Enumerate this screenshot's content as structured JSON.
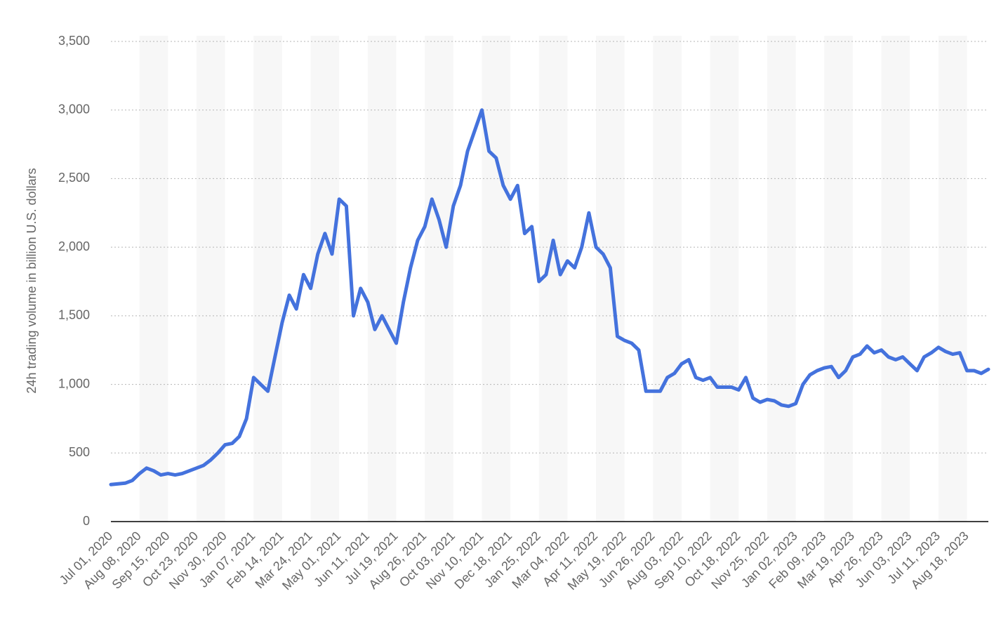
{
  "chart_data": {
    "type": "line",
    "y_label": "24h trading volume in billion U.S. dollars",
    "categories": [
      "Jul 01, 2020",
      null,
      null,
      null,
      "Aug 08, 2020",
      null,
      null,
      null,
      "Sep 15, 2020",
      null,
      null,
      null,
      "Oct 23, 2020",
      null,
      null,
      null,
      "Nov 30, 2020",
      null,
      null,
      null,
      "Jan 07, 2021",
      null,
      null,
      null,
      "Feb 14, 2021",
      null,
      null,
      null,
      "Mar 24, 2021",
      null,
      null,
      null,
      "May 01, 2021",
      null,
      null,
      null,
      "Jun 11, 2021",
      null,
      null,
      null,
      "Jul 19, 2021",
      null,
      null,
      null,
      "Aug 26, 2021",
      null,
      null,
      null,
      "Oct 03, 2021",
      null,
      null,
      null,
      "Nov 10, 2021",
      null,
      null,
      null,
      "Dec 18, 2021",
      null,
      null,
      null,
      "Jan 25, 2022",
      null,
      null,
      null,
      "Mar 04, 2022",
      null,
      null,
      null,
      "Apr 11, 2022",
      null,
      null,
      null,
      "May 19, 2022",
      null,
      null,
      null,
      "Jun 26, 2022",
      null,
      null,
      null,
      "Aug 03, 2022",
      null,
      null,
      null,
      "Sep 10, 2022",
      null,
      null,
      null,
      "Oct 18, 2022",
      null,
      null,
      null,
      "Nov 25, 2022",
      null,
      null,
      null,
      "Jan 02, 2023",
      null,
      null,
      null,
      "Feb 09, 2023",
      null,
      null,
      null,
      "Mar 19, 2023",
      null,
      null,
      null,
      "Apr 26, 2023",
      null,
      null,
      null,
      "Jun 03, 2023",
      null,
      null,
      null,
      "Jul 11, 2023",
      null,
      null,
      null,
      "Aug 18, 2023",
      null,
      null,
      null
    ],
    "series": [
      {
        "name": "24h trading volume",
        "color": "#4472dd",
        "values": [
          270,
          275,
          280,
          300,
          350,
          390,
          370,
          340,
          350,
          340,
          350,
          370,
          390,
          410,
          450,
          500,
          560,
          570,
          620,
          750,
          1050,
          1000,
          950,
          1200,
          1450,
          1650,
          1550,
          1800,
          1700,
          1950,
          2100,
          1950,
          2350,
          2300,
          1500,
          1700,
          1600,
          1400,
          1500,
          1400,
          1300,
          1600,
          1850,
          2050,
          2150,
          2350,
          2200,
          2000,
          2300,
          2450,
          2700,
          2850,
          3000,
          2700,
          2650,
          2450,
          2350,
          2450,
          2100,
          2150,
          1750,
          1800,
          2050,
          1800,
          1900,
          1850,
          2000,
          2250,
          2000,
          1950,
          1850,
          1350,
          1320,
          1300,
          1250,
          950,
          950,
          950,
          1050,
          1080,
          1150,
          1180,
          1050,
          1030,
          1050,
          980,
          980,
          980,
          960,
          1050,
          900,
          870,
          890,
          880,
          850,
          840,
          860,
          1000,
          1070,
          1100,
          1120,
          1130,
          1050,
          1100,
          1200,
          1220,
          1280,
          1230,
          1250,
          1200,
          1180,
          1200,
          1150,
          1100,
          1200,
          1230,
          1270,
          1240,
          1220,
          1230,
          1100,
          1100,
          1080,
          1110
        ]
      }
    ],
    "ylim": [
      0,
      3500
    ],
    "yticks": [
      0,
      500,
      {
        "value": 1000,
        "label": "1,000"
      },
      {
        "value": 1500,
        "label": "1,500"
      },
      {
        "value": 2000,
        "label": "2,000"
      },
      {
        "value": 2500,
        "label": "2,500"
      },
      {
        "value": 3000,
        "label": "3,000"
      },
      {
        "value": 3500,
        "label": "3,500"
      }
    ],
    "grid": true
  }
}
